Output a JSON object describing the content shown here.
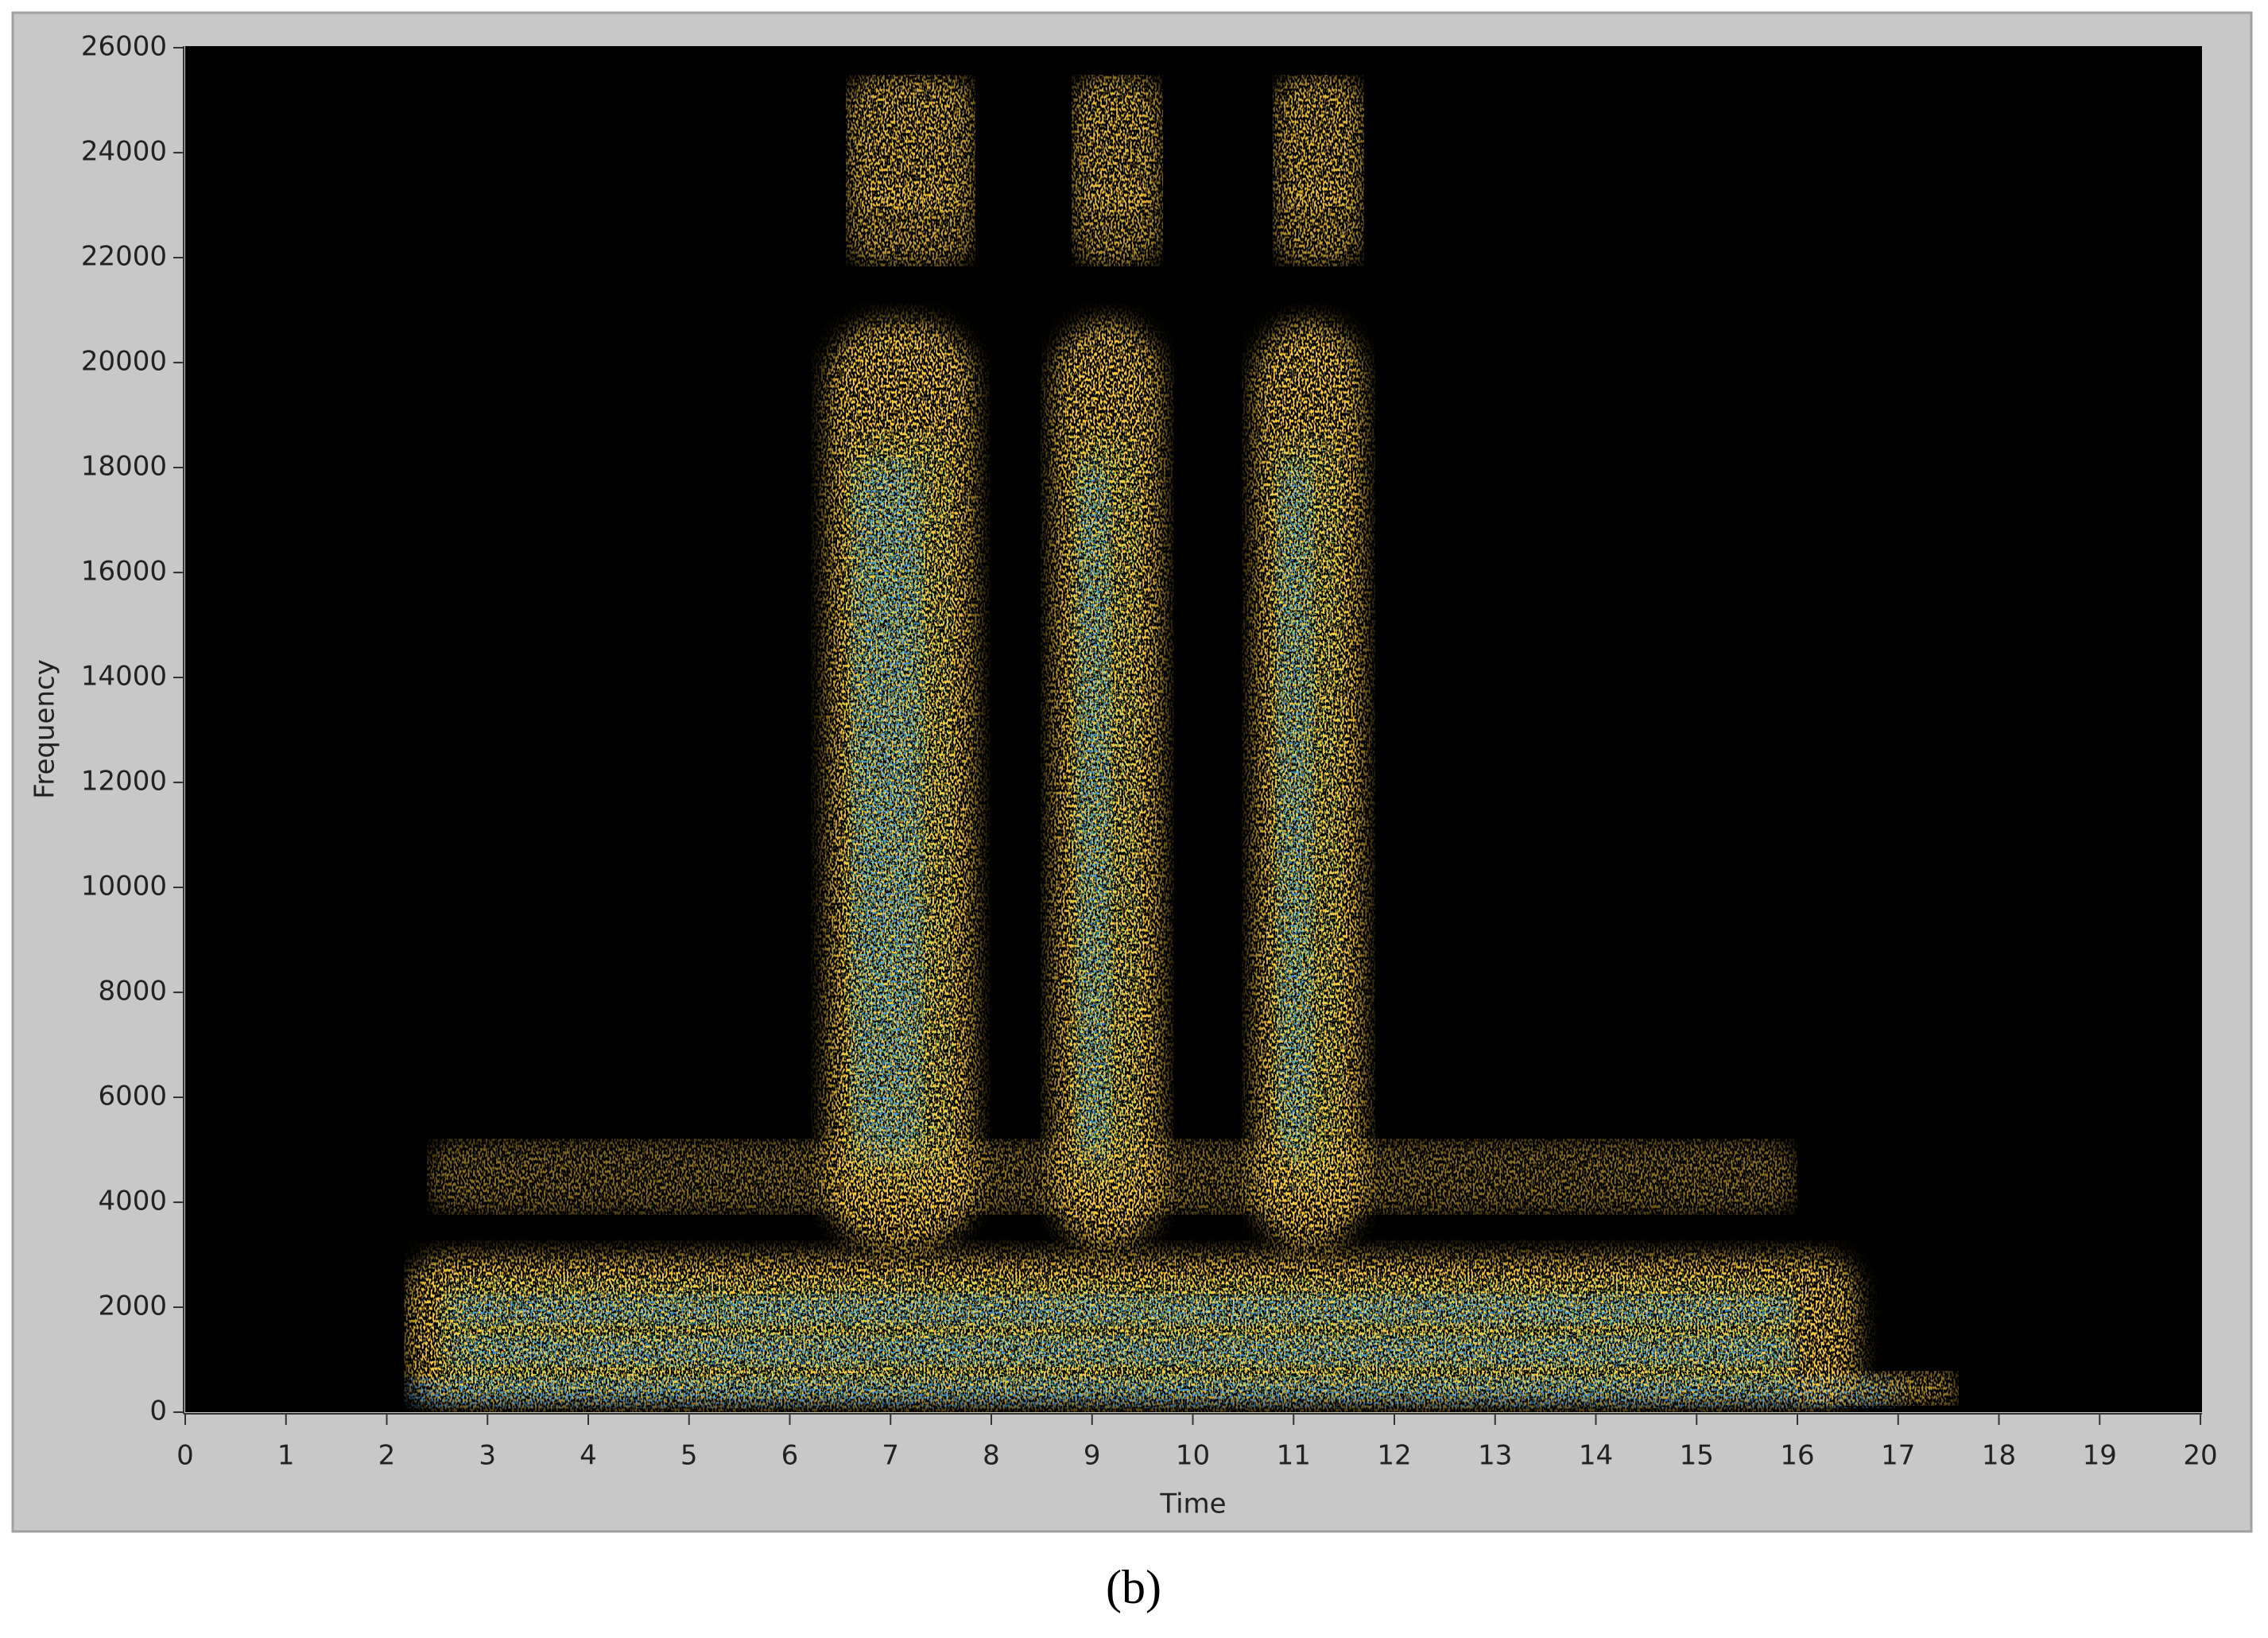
{
  "chart_data": {
    "type": "spectrogram",
    "xlabel": "Time",
    "ylabel": "Frequency",
    "caption": "(b)",
    "xlim": [
      0,
      20
    ],
    "xticks": [
      0,
      1,
      2,
      3,
      4,
      5,
      6,
      7,
      8,
      9,
      10,
      11,
      12,
      13,
      14,
      15,
      16,
      17,
      18,
      19,
      20
    ],
    "ylim": [
      0,
      26000
    ],
    "yticks": [
      0,
      2000,
      4000,
      6000,
      8000,
      10000,
      12000,
      14000,
      16000,
      18000,
      20000,
      22000,
      24000,
      26000
    ]
  }
}
